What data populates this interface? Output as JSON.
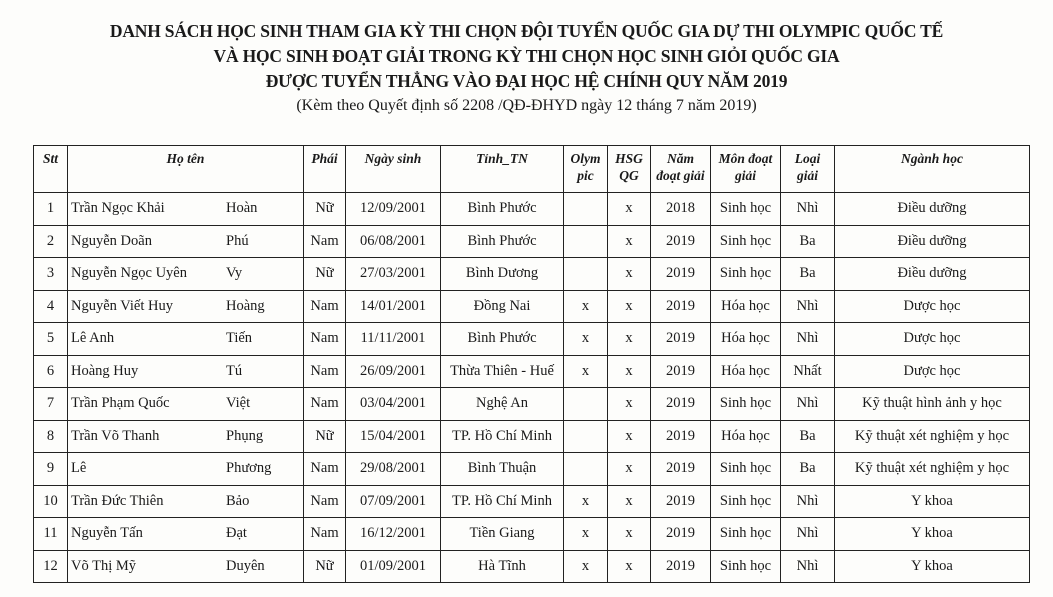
{
  "document": {
    "title_lines": [
      "DANH SÁCH HỌC SINH THAM GIA KỲ THI CHỌN ĐỘI TUYỂN QUỐC GIA DỰ THI OLYMPIC QUỐC TẾ",
      "VÀ HỌC SINH ĐOẠT GIẢI TRONG KỲ THI CHỌN HỌC SINH GIỎI QUỐC GIA",
      "ĐƯỢC TUYỂN THẲNG VÀO ĐẠI HỌC HỆ CHÍNH QUY NĂM 2019"
    ],
    "subtitle": "(Kèm theo Quyết định số 2208 /QĐ-ĐHYD ngày 12 tháng 7 năm 2019)"
  },
  "table": {
    "headers": [
      "Stt",
      "Họ tên",
      "Phái",
      "Ngày sinh",
      "Tỉnh_TN",
      "Olym pic",
      "HSG QG",
      "Năm đoạt giải",
      "Môn đoạt giải",
      "Loại giải",
      "Ngành học"
    ],
    "rows": [
      [
        "1",
        "Trần Ngọc Khải",
        "Hoàn",
        "Nữ",
        "12/09/2001",
        "Bình Phước",
        "",
        "x",
        "2018",
        "Sinh học",
        "Nhì",
        "Điều dưỡng"
      ],
      [
        "2",
        "Nguyễn Doãn",
        "Phú",
        "Nam",
        "06/08/2001",
        "Bình Phước",
        "",
        "x",
        "2019",
        "Sinh học",
        "Ba",
        "Điều dưỡng"
      ],
      [
        "3",
        "Nguyễn Ngọc Uyên",
        "Vy",
        "Nữ",
        "27/03/2001",
        "Bình Dương",
        "",
        "x",
        "2019",
        "Sinh học",
        "Ba",
        "Điều dưỡng"
      ],
      [
        "4",
        "Nguyễn Viết Huy",
        "Hoàng",
        "Nam",
        "14/01/2001",
        "Đồng Nai",
        "x",
        "x",
        "2019",
        "Hóa học",
        "Nhì",
        "Dược học"
      ],
      [
        "5",
        "Lê Anh",
        "Tiến",
        "Nam",
        "11/11/2001",
        "Bình Phước",
        "x",
        "x",
        "2019",
        "Hóa học",
        "Nhì",
        "Dược học"
      ],
      [
        "6",
        "Hoàng Huy",
        "Tú",
        "Nam",
        "26/09/2001",
        "Thừa Thiên - Huế",
        "x",
        "x",
        "2019",
        "Hóa học",
        "Nhất",
        "Dược học"
      ],
      [
        "7",
        "Trần Phạm Quốc",
        "Việt",
        "Nam",
        "03/04/2001",
        "Nghệ An",
        "",
        "x",
        "2019",
        "Sinh học",
        "Nhì",
        "Kỹ thuật hình ảnh y học"
      ],
      [
        "8",
        "Trần Võ Thanh",
        "Phụng",
        "Nữ",
        "15/04/2001",
        "TP. Hồ Chí Minh",
        "",
        "x",
        "2019",
        "Hóa học",
        "Ba",
        "Kỹ thuật xét nghiệm y học"
      ],
      [
        "9",
        "Lê",
        "Phương",
        "Nam",
        "29/08/2001",
        "Bình Thuận",
        "",
        "x",
        "2019",
        "Sinh học",
        "Ba",
        "Kỹ thuật xét nghiệm y học"
      ],
      [
        "10",
        "Trần Đức Thiên",
        "Bảo",
        "Nam",
        "07/09/2001",
        "TP. Hồ Chí Minh",
        "x",
        "x",
        "2019",
        "Sinh học",
        "Nhì",
        "Y khoa"
      ],
      [
        "11",
        "Nguyễn Tấn",
        "Đạt",
        "Nam",
        "16/12/2001",
        "Tiền Giang",
        "x",
        "x",
        "2019",
        "Sinh học",
        "Nhì",
        "Y khoa"
      ],
      [
        "12",
        "Võ Thị Mỹ",
        "Duyên",
        "Nữ",
        "01/09/2001",
        "Hà Tĩnh",
        "x",
        "x",
        "2019",
        "Sinh học",
        "Nhì",
        "Y khoa"
      ]
    ]
  }
}
